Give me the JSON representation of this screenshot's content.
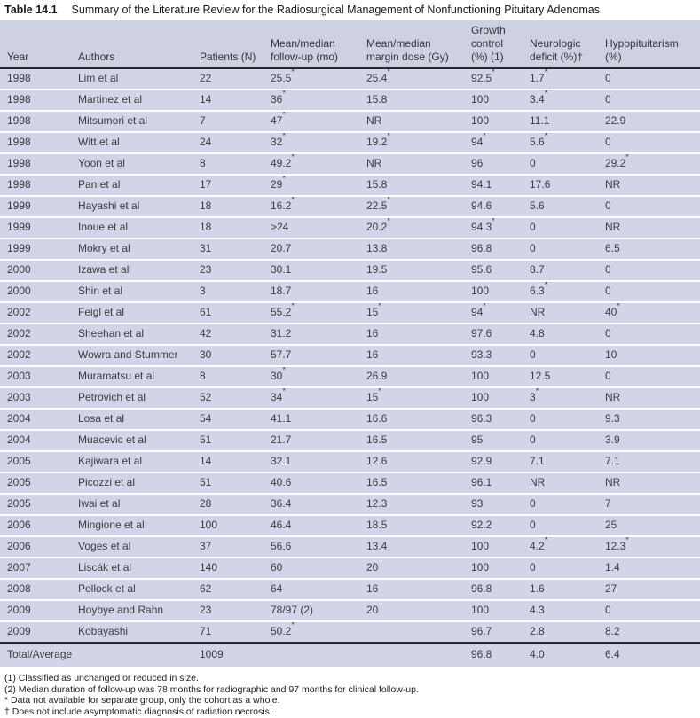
{
  "title": {
    "label": "Table 14.1",
    "text": "Summary of the Literature Review for the Radiosurgical Management of Nonfunctioning Pituitary Adenomas"
  },
  "colors": {
    "row_bg": "#d2d5e7",
    "header_bg": "#cdd1e2",
    "rule": "#26262e",
    "text": "#3b3b41"
  },
  "table": {
    "columns": [
      {
        "label": "Year"
      },
      {
        "label": "Authors"
      },
      {
        "label": "Patients (N)"
      },
      {
        "label": "Mean/median\nfollow-up (mo)"
      },
      {
        "label": "Mean/median\nmargin dose (Gy)"
      },
      {
        "label": "Growth\ncontrol\n(%) (1)"
      },
      {
        "label": "Neurologic\ndeficit (%)†"
      },
      {
        "label": "Hypopituitarism\n(%)"
      }
    ],
    "rows": [
      [
        "1998",
        "Lim et al",
        "22",
        "25.5*",
        "25.4*",
        "92.5*",
        "1.7*",
        "0"
      ],
      [
        "1998",
        "Martinez et al",
        "14",
        "36*",
        "15.8",
        "100",
        "3.4*",
        "0"
      ],
      [
        "1998",
        "Mitsumori et al",
        "7",
        "47*",
        "NR",
        "100",
        "11.1",
        "22.9"
      ],
      [
        "1998",
        "Witt et al",
        "24",
        "32*",
        "19.2*",
        "94*",
        "5.6*",
        "0"
      ],
      [
        "1998",
        "Yoon et al",
        "8",
        "49.2*",
        "NR",
        "96",
        "0",
        "29.2*"
      ],
      [
        "1998",
        "Pan et al",
        "17",
        "29*",
        "15.8",
        "94.1",
        "17.6",
        "NR"
      ],
      [
        "1999",
        "Hayashi et al",
        "18",
        "16.2*",
        "22.5*",
        "94.6",
        "5.6",
        "0"
      ],
      [
        "1999",
        "Inoue et al",
        "18",
        ">24",
        "20.2*",
        "94.3*",
        "0",
        "NR"
      ],
      [
        "1999",
        "Mokry et al",
        "31",
        "20.7",
        "13.8",
        "96.8",
        "0",
        "6.5"
      ],
      [
        "2000",
        "Izawa et al",
        "23",
        "30.1",
        "19.5",
        "95.6",
        "8.7",
        "0"
      ],
      [
        "2000",
        "Shin et al",
        "3",
        "18.7",
        "16",
        "100",
        "6.3*",
        "0"
      ],
      [
        "2002",
        "Feigl et al",
        "61",
        "55.2*",
        "15*",
        "94*",
        "NR",
        "40*"
      ],
      [
        "2002",
        "Sheehan et al",
        "42",
        "31.2",
        "16",
        "97.6",
        "4.8",
        "0"
      ],
      [
        "2002",
        "Wowra and Stummer",
        "30",
        "57.7",
        "16",
        "93.3",
        "0",
        "10"
      ],
      [
        "2003",
        "Muramatsu et al",
        "8",
        "30*",
        "26.9",
        "100",
        "12.5",
        "0"
      ],
      [
        "2003",
        "Petrovich et al",
        "52",
        "34*",
        "15*",
        "100",
        "3*",
        "NR"
      ],
      [
        "2004",
        "Losa et al",
        "54",
        "41.1",
        "16.6",
        "96.3",
        "0",
        "9.3"
      ],
      [
        "2004",
        "Muacevic et al",
        "51",
        "21.7",
        "16.5",
        "95",
        "0",
        "3.9"
      ],
      [
        "2005",
        "Kajiwara et al",
        "14",
        "32.1",
        "12.6",
        "92.9",
        "7.1",
        "7.1"
      ],
      [
        "2005",
        "Picozzi et al",
        "51",
        "40.6",
        "16.5",
        "96.1",
        "NR",
        "NR"
      ],
      [
        "2005",
        "Iwai et al",
        "28",
        "36.4",
        "12.3",
        "93",
        "0",
        "7"
      ],
      [
        "2006",
        "Mingione et al",
        "100",
        "46.4",
        "18.5",
        "92.2",
        "0",
        "25"
      ],
      [
        "2006",
        "Voges et al",
        "37",
        "56.6",
        "13.4",
        "100",
        "4.2*",
        "12.3*"
      ],
      [
        "2007",
        "Liscák et al",
        "140",
        "60",
        "20",
        "100",
        "0",
        "1.4"
      ],
      [
        "2008",
        "Pollock et al",
        "62",
        "64",
        "16",
        "96.8",
        "1.6",
        "27"
      ],
      [
        "2009",
        "Hoybye and Rahn",
        "23",
        "78/97 (2)",
        "20",
        "100",
        "4.3",
        "0"
      ],
      [
        "2009",
        "Kobayashi",
        "71",
        "50.2*",
        "",
        "96.7",
        "2.8",
        "8.2"
      ]
    ],
    "total": {
      "label": "Total/Average",
      "patients": "1009",
      "growth": "96.8",
      "deficit": "4.0",
      "hypopit": "6.4"
    }
  },
  "footnotes": [
    "(1) Classified as unchanged or reduced in size.",
    "(2) Median duration of follow-up was 78 months for radiographic and 97 months for clinical follow-up.",
    "* Data not available for separate group, only the cohort as a whole.",
    "† Does not include asymptomatic diagnosis of radiation necrosis."
  ]
}
